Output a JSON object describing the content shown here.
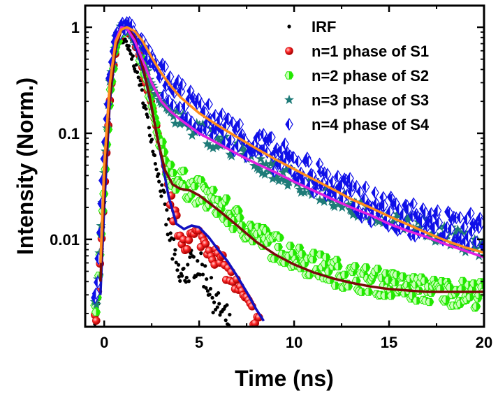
{
  "chart_data": {
    "type": "scatter",
    "xlabel": "Time (ns)",
    "ylabel": "Intensity (Norm.)",
    "xlim": [
      -1,
      20
    ],
    "ylim": [
      0.0015,
      1.6
    ],
    "yscale": "log",
    "x_ticks": [
      0,
      5,
      10,
      15,
      20
    ],
    "x_tick_labels": [
      "0",
      "5",
      "10",
      "15",
      "20"
    ],
    "y_ticks": [
      0.01,
      0.1,
      1
    ],
    "y_tick_labels": [
      "0.01",
      "0.1",
      "1"
    ],
    "grid": false,
    "legend_position": "top-right",
    "series": [
      {
        "name": "IRF",
        "marker": "dot",
        "color": "#000000",
        "points": [
          [
            -0.4,
            0.0018
          ],
          [
            -0.2,
            0.003
          ],
          [
            0,
            0.02
          ],
          [
            0.2,
            0.1
          ],
          [
            0.4,
            0.3
          ],
          [
            0.6,
            0.55
          ],
          [
            0.8,
            0.72
          ],
          [
            1.0,
            0.75
          ],
          [
            1.2,
            0.65
          ],
          [
            1.4,
            0.55
          ],
          [
            1.6,
            0.45
          ],
          [
            1.8,
            0.34
          ],
          [
            2.0,
            0.24
          ],
          [
            2.2,
            0.16
          ],
          [
            2.4,
            0.105
          ],
          [
            2.6,
            0.068
          ],
          [
            2.8,
            0.044
          ],
          [
            3.0,
            0.028
          ],
          [
            3.2,
            0.018
          ],
          [
            3.4,
            0.012
          ],
          [
            3.6,
            0.008
          ],
          [
            3.8,
            0.0055
          ],
          [
            4.0,
            0.0042
          ],
          [
            4.2,
            0.0045
          ],
          [
            4.4,
            0.0052
          ],
          [
            4.6,
            0.0058
          ],
          [
            4.8,
            0.006
          ],
          [
            5.0,
            0.0057
          ],
          [
            5.2,
            0.005
          ],
          [
            5.4,
            0.0042
          ],
          [
            5.6,
            0.0033
          ],
          [
            5.8,
            0.0027
          ],
          [
            6.0,
            0.0023
          ],
          [
            6.2,
            0.002
          ],
          [
            6.4,
            0.0018
          ],
          [
            6.6,
            0.0017
          ]
        ]
      },
      {
        "name": "n=1 phase of S1",
        "marker": "sphere",
        "color": "#e00000",
        "points": [
          [
            -0.4,
            0.0018
          ],
          [
            0,
            0.025
          ],
          [
            0.3,
            0.2
          ],
          [
            0.6,
            0.62
          ],
          [
            0.9,
            0.95
          ],
          [
            1.1,
            1.0
          ],
          [
            1.3,
            0.92
          ],
          [
            1.6,
            0.72
          ],
          [
            1.9,
            0.5
          ],
          [
            2.2,
            0.31
          ],
          [
            2.5,
            0.18
          ],
          [
            2.8,
            0.1
          ],
          [
            3.1,
            0.055
          ],
          [
            3.4,
            0.028
          ],
          [
            3.7,
            0.016
          ],
          [
            4.0,
            0.011
          ],
          [
            4.3,
            0.0095
          ],
          [
            4.6,
            0.0105
          ],
          [
            4.9,
            0.011
          ],
          [
            5.2,
            0.0098
          ],
          [
            5.5,
            0.0085
          ],
          [
            5.8,
            0.0072
          ],
          [
            6.1,
            0.0062
          ],
          [
            6.4,
            0.0052
          ],
          [
            6.7,
            0.0043
          ],
          [
            7.0,
            0.0035
          ],
          [
            7.3,
            0.0028
          ],
          [
            7.6,
            0.0023
          ],
          [
            7.9,
            0.0019
          ],
          [
            8.2,
            0.0017
          ]
        ]
      },
      {
        "name": "n=2 phase of S2",
        "marker": "hexagon",
        "color": "#22e800",
        "points": [
          [
            -0.4,
            0.0022
          ],
          [
            0,
            0.03
          ],
          [
            0.3,
            0.22
          ],
          [
            0.6,
            0.65
          ],
          [
            0.9,
            0.95
          ],
          [
            1.2,
            1.0
          ],
          [
            1.5,
            0.85
          ],
          [
            1.8,
            0.6
          ],
          [
            2.1,
            0.38
          ],
          [
            2.4,
            0.22
          ],
          [
            2.7,
            0.12
          ],
          [
            3.0,
            0.068
          ],
          [
            3.3,
            0.048
          ],
          [
            3.6,
            0.04
          ],
          [
            4.0,
            0.035
          ],
          [
            4.5,
            0.031
          ],
          [
            5.0,
            0.028
          ],
          [
            6.0,
            0.021
          ],
          [
            7.0,
            0.015
          ],
          [
            8.0,
            0.011
          ],
          [
            9.0,
            0.0085
          ],
          [
            10.0,
            0.007
          ],
          [
            11.0,
            0.0058
          ],
          [
            12.0,
            0.005
          ],
          [
            13.0,
            0.0045
          ],
          [
            14.0,
            0.0041
          ],
          [
            15.0,
            0.0038
          ],
          [
            16.0,
            0.0035
          ],
          [
            17.0,
            0.0033
          ],
          [
            18.0,
            0.0032
          ],
          [
            19.0,
            0.0031
          ],
          [
            20.0,
            0.003
          ]
        ]
      },
      {
        "name": "n=3 phase of S3",
        "marker": "star",
        "color": "#1e7b78",
        "points": [
          [
            -0.4,
            0.0025
          ],
          [
            0,
            0.05
          ],
          [
            0.3,
            0.3
          ],
          [
            0.6,
            0.75
          ],
          [
            0.9,
            1.0
          ],
          [
            1.2,
            0.95
          ],
          [
            1.5,
            0.8
          ],
          [
            1.8,
            0.6
          ],
          [
            2.2,
            0.4
          ],
          [
            2.6,
            0.27
          ],
          [
            3.0,
            0.2
          ],
          [
            3.5,
            0.16
          ],
          [
            4.0,
            0.135
          ],
          [
            5.0,
            0.105
          ],
          [
            6.0,
            0.085
          ],
          [
            7.0,
            0.068
          ],
          [
            8.0,
            0.055
          ],
          [
            9.0,
            0.045
          ],
          [
            10.0,
            0.037
          ],
          [
            11.0,
            0.03
          ],
          [
            12.0,
            0.025
          ],
          [
            13.0,
            0.021
          ],
          [
            14.0,
            0.018
          ],
          [
            15.0,
            0.016
          ],
          [
            16.0,
            0.014
          ],
          [
            17.0,
            0.0125
          ],
          [
            18.0,
            0.011
          ],
          [
            19.0,
            0.0095
          ],
          [
            20.0,
            0.008
          ]
        ]
      },
      {
        "name": "n=4 phase of S4",
        "marker": "diamond-half",
        "color": "#1010e8",
        "points": [
          [
            -0.4,
            0.003
          ],
          [
            0,
            0.06
          ],
          [
            0.3,
            0.35
          ],
          [
            0.6,
            0.8
          ],
          [
            0.9,
            1.0
          ],
          [
            1.2,
            1.05
          ],
          [
            1.5,
            0.95
          ],
          [
            1.8,
            0.8
          ],
          [
            2.2,
            0.6
          ],
          [
            2.6,
            0.45
          ],
          [
            3.0,
            0.34
          ],
          [
            3.5,
            0.26
          ],
          [
            4.0,
            0.21
          ],
          [
            5.0,
            0.15
          ],
          [
            6.0,
            0.12
          ],
          [
            7.0,
            0.095
          ],
          [
            8.0,
            0.078
          ],
          [
            9.0,
            0.062
          ],
          [
            10.0,
            0.05
          ],
          [
            11.0,
            0.04
          ],
          [
            12.0,
            0.032
          ],
          [
            13.0,
            0.026
          ],
          [
            14.0,
            0.021
          ],
          [
            15.0,
            0.018
          ],
          [
            16.0,
            0.016
          ],
          [
            17.0,
            0.014
          ],
          [
            18.0,
            0.013
          ],
          [
            19.0,
            0.0125
          ],
          [
            20.0,
            0.012
          ]
        ]
      }
    ],
    "fit_lines": [
      {
        "color": "#1010c0",
        "points": [
          [
            -0.2,
            0.003
          ],
          [
            0,
            0.02
          ],
          [
            0.3,
            0.2
          ],
          [
            0.6,
            0.62
          ],
          [
            0.9,
            0.95
          ],
          [
            1.1,
            1.0
          ],
          [
            1.4,
            0.85
          ],
          [
            1.8,
            0.55
          ],
          [
            2.2,
            0.31
          ],
          [
            2.6,
            0.14
          ],
          [
            3.0,
            0.06
          ],
          [
            3.4,
            0.025
          ],
          [
            3.8,
            0.014
          ],
          [
            4.2,
            0.0125
          ],
          [
            4.6,
            0.0135
          ],
          [
            5.0,
            0.013
          ],
          [
            5.5,
            0.0105
          ],
          [
            6.0,
            0.008
          ],
          [
            6.5,
            0.0062
          ],
          [
            7.0,
            0.0045
          ],
          [
            7.5,
            0.0032
          ],
          [
            8.0,
            0.0022
          ],
          [
            8.4,
            0.0017
          ]
        ]
      },
      {
        "color": "#7a0a0a",
        "points": [
          [
            -0.2,
            0.004
          ],
          [
            0,
            0.03
          ],
          [
            0.3,
            0.22
          ],
          [
            0.6,
            0.65
          ],
          [
            0.9,
            0.95
          ],
          [
            1.2,
            1.0
          ],
          [
            1.6,
            0.8
          ],
          [
            2.0,
            0.45
          ],
          [
            2.4,
            0.22
          ],
          [
            2.8,
            0.09
          ],
          [
            3.2,
            0.045
          ],
          [
            3.6,
            0.033
          ],
          [
            4.0,
            0.03
          ],
          [
            4.5,
            0.029
          ],
          [
            5.0,
            0.026
          ],
          [
            6.0,
            0.019
          ],
          [
            7.0,
            0.0135
          ],
          [
            8.0,
            0.0095
          ],
          [
            9.0,
            0.0072
          ],
          [
            10.0,
            0.0058
          ],
          [
            11.0,
            0.0049
          ],
          [
            12.0,
            0.0043
          ],
          [
            13.0,
            0.0039
          ],
          [
            14.0,
            0.0036
          ],
          [
            15.0,
            0.0034
          ],
          [
            16.0,
            0.0033
          ],
          [
            17.0,
            0.0032
          ],
          [
            18.0,
            0.0032
          ],
          [
            19.0,
            0.0032
          ],
          [
            20.0,
            0.0032
          ]
        ]
      },
      {
        "color": "#e020e0",
        "points": [
          [
            -0.2,
            0.006
          ],
          [
            0,
            0.05
          ],
          [
            0.3,
            0.3
          ],
          [
            0.6,
            0.75
          ],
          [
            0.9,
            1.0
          ],
          [
            1.2,
            0.97
          ],
          [
            1.6,
            0.75
          ],
          [
            2.0,
            0.5
          ],
          [
            2.5,
            0.3
          ],
          [
            3.0,
            0.2
          ],
          [
            3.5,
            0.16
          ],
          [
            4.0,
            0.135
          ],
          [
            5.0,
            0.1
          ],
          [
            6.0,
            0.08
          ],
          [
            7.0,
            0.064
          ],
          [
            8.0,
            0.052
          ],
          [
            9.0,
            0.043
          ],
          [
            10.0,
            0.035
          ],
          [
            11.0,
            0.029
          ],
          [
            12.0,
            0.024
          ],
          [
            13.0,
            0.02
          ],
          [
            14.0,
            0.017
          ],
          [
            15.0,
            0.014
          ],
          [
            16.0,
            0.012
          ],
          [
            17.0,
            0.0105
          ],
          [
            18.0,
            0.009
          ],
          [
            19.0,
            0.0078
          ],
          [
            20.0,
            0.0068
          ]
        ]
      },
      {
        "color": "#ff8c1a",
        "points": [
          [
            -0.2,
            0.006
          ],
          [
            0,
            0.05
          ],
          [
            0.3,
            0.3
          ],
          [
            0.6,
            0.72
          ],
          [
            0.9,
            0.95
          ],
          [
            1.2,
            1.0
          ],
          [
            1.6,
            0.92
          ],
          [
            2.0,
            0.75
          ],
          [
            2.5,
            0.52
          ],
          [
            3.0,
            0.37
          ],
          [
            3.5,
            0.28
          ],
          [
            4.0,
            0.22
          ],
          [
            5.0,
            0.155
          ],
          [
            6.0,
            0.118
          ],
          [
            7.0,
            0.092
          ],
          [
            8.0,
            0.072
          ],
          [
            9.0,
            0.057
          ],
          [
            10.0,
            0.046
          ],
          [
            11.0,
            0.037
          ],
          [
            12.0,
            0.03
          ],
          [
            13.0,
            0.024
          ],
          [
            14.0,
            0.02
          ],
          [
            15.0,
            0.0165
          ],
          [
            16.0,
            0.0138
          ],
          [
            17.0,
            0.0115
          ],
          [
            18.0,
            0.0097
          ],
          [
            19.0,
            0.0084
          ],
          [
            20.0,
            0.0075
          ]
        ]
      }
    ]
  }
}
